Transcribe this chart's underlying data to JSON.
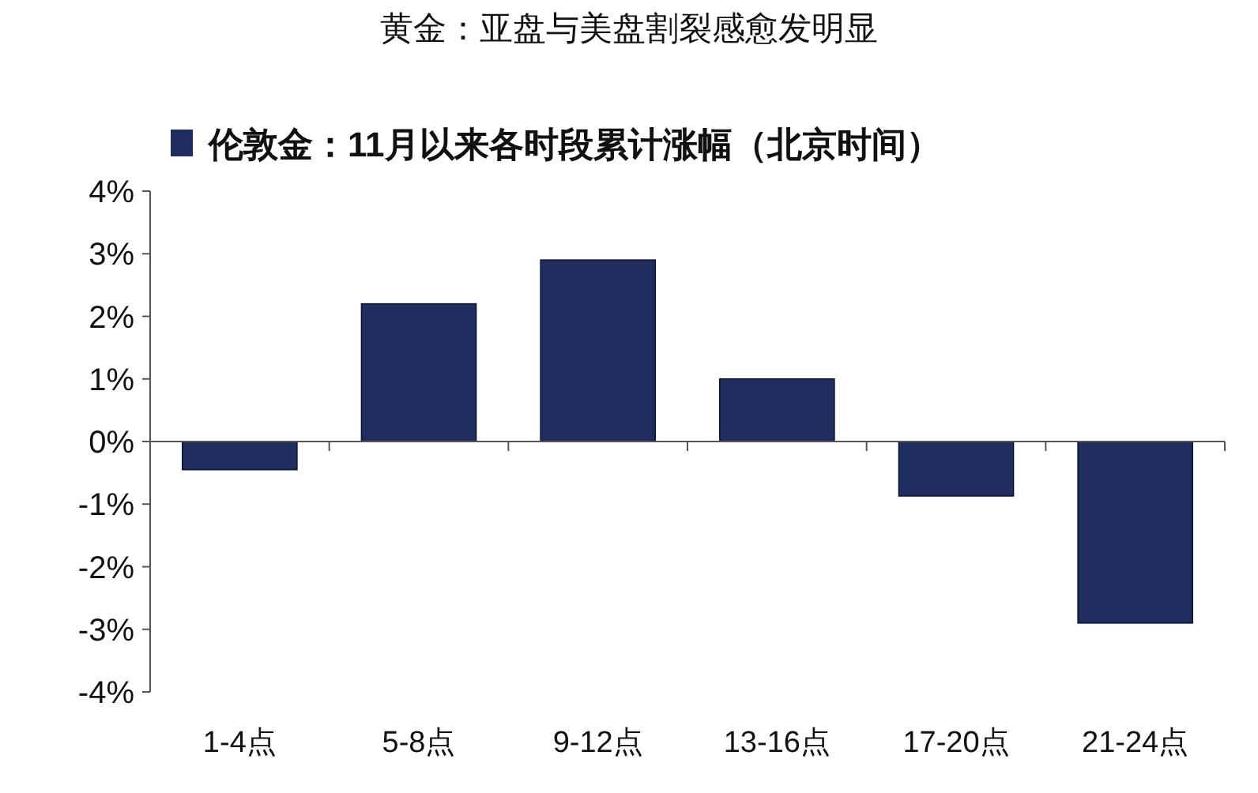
{
  "chart_data": {
    "type": "bar",
    "title": "黄金：亚盘与美盘割裂感愈发明显",
    "categories": [
      "1-4点",
      "5-8点",
      "9-12点",
      "13-16点",
      "17-20点",
      "21-24点"
    ],
    "series": [
      {
        "name": "伦敦金：11月以来各时段累计涨幅（北京时间）",
        "color": "#1f2e5e",
        "values": [
          -0.45,
          2.2,
          2.9,
          1.0,
          -0.87,
          -2.9
        ]
      }
    ],
    "ylim": [
      -4,
      4
    ],
    "yticks": [
      {
        "value": -4,
        "label": "-4%"
      },
      {
        "value": -3,
        "label": "-3%"
      },
      {
        "value": -2,
        "label": "-2%"
      },
      {
        "value": -1,
        "label": "-1%"
      },
      {
        "value": 0,
        "label": "0%"
      },
      {
        "value": 1,
        "label": "1%"
      },
      {
        "value": 2,
        "label": "2%"
      },
      {
        "value": 3,
        "label": "3%"
      },
      {
        "value": 4,
        "label": "4%"
      }
    ],
    "legend": "top left"
  }
}
